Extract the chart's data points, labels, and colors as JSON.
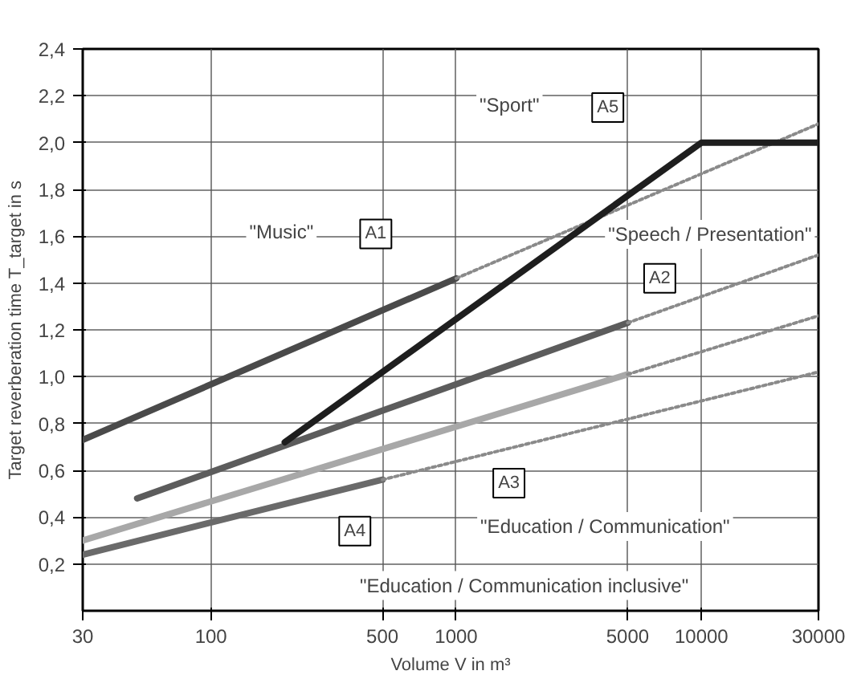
{
  "chart_data": {
    "type": "line",
    "xlabel": "Volume V in m³",
    "ylabel": "Target reverberation time T_target in s",
    "log": "x",
    "grid": true,
    "xlim": [
      30,
      30000
    ],
    "ylim": [
      0,
      2.4
    ],
    "xticks": [
      30,
      100,
      500,
      1000,
      5000,
      10000,
      30000
    ],
    "yticks": [
      {
        "value": 0.2,
        "label": "0,2"
      },
      {
        "value": 0.4,
        "label": "0,4"
      },
      {
        "value": 0.6,
        "label": "0,6"
      },
      {
        "value": 0.8,
        "label": "0,8"
      },
      {
        "value": 1.0,
        "label": "1,0"
      },
      {
        "value": 1.2,
        "label": "1,2"
      },
      {
        "value": 1.4,
        "label": "1,4"
      },
      {
        "value": 1.6,
        "label": "1,6"
      },
      {
        "value": 1.8,
        "label": "1,8"
      },
      {
        "value": 2.0,
        "label": "2,0"
      },
      {
        "value": 2.2,
        "label": "2,2"
      },
      {
        "value": 2.4,
        "label": "2,4"
      }
    ],
    "series": [
      {
        "color": "#4a4a4a",
        "line_style": "solid",
        "x": [
          30,
          1000
        ],
        "values": [
          0.73,
          1.42
        ]
      },
      {
        "color": "#8a8a8a",
        "line_style": "dotted",
        "x": [
          1000,
          30000
        ],
        "values": [
          1.42,
          2.08
        ]
      },
      {
        "color": "#5c5c5c",
        "line_style": "solid",
        "x": [
          50,
          5000
        ],
        "values": [
          0.48,
          1.23
        ]
      },
      {
        "color": "#8a8a8a",
        "line_style": "dotted",
        "x": [
          5000,
          30000
        ],
        "values": [
          1.23,
          1.52
        ]
      },
      {
        "color": "#a8a8a8",
        "line_style": "solid",
        "x": [
          30,
          5000
        ],
        "values": [
          0.3,
          1.01
        ]
      },
      {
        "color": "#8a8a8a",
        "line_style": "dotted",
        "x": [
          5000,
          30000
        ],
        "values": [
          1.01,
          1.26
        ]
      },
      {
        "color": "#6a6a6a",
        "line_style": "solid",
        "x": [
          30,
          500
        ],
        "values": [
          0.24,
          0.56
        ]
      },
      {
        "color": "#8a8a8a",
        "line_style": "dotted",
        "x": [
          500,
          30000
        ],
        "values": [
          0.56,
          1.02
        ]
      },
      {
        "color": "#1e1e1e",
        "line_style": "solid",
        "x": [
          200,
          10000,
          30000
        ],
        "values": [
          0.72,
          2.0,
          2.0
        ]
      }
    ],
    "annotations": [
      "\"Music\"",
      {
        "text": "A1",
        "x": 470,
        "y": 1.61
      },
      "\"Sport\"",
      {
        "text": "A5",
        "x": 4150,
        "y": 2.15
      },
      "\"Speech / Presentation\"",
      {
        "text": "A2",
        "x": 6760,
        "y": 1.42
      },
      {
        "text": "A3",
        "x": 1640,
        "y": 0.545
      },
      {
        "text": "A4",
        "x": 386,
        "y": 0.34
      },
      "\"Education / Communication\"",
      "\"Education / Communication inclusive\""
    ]
  }
}
